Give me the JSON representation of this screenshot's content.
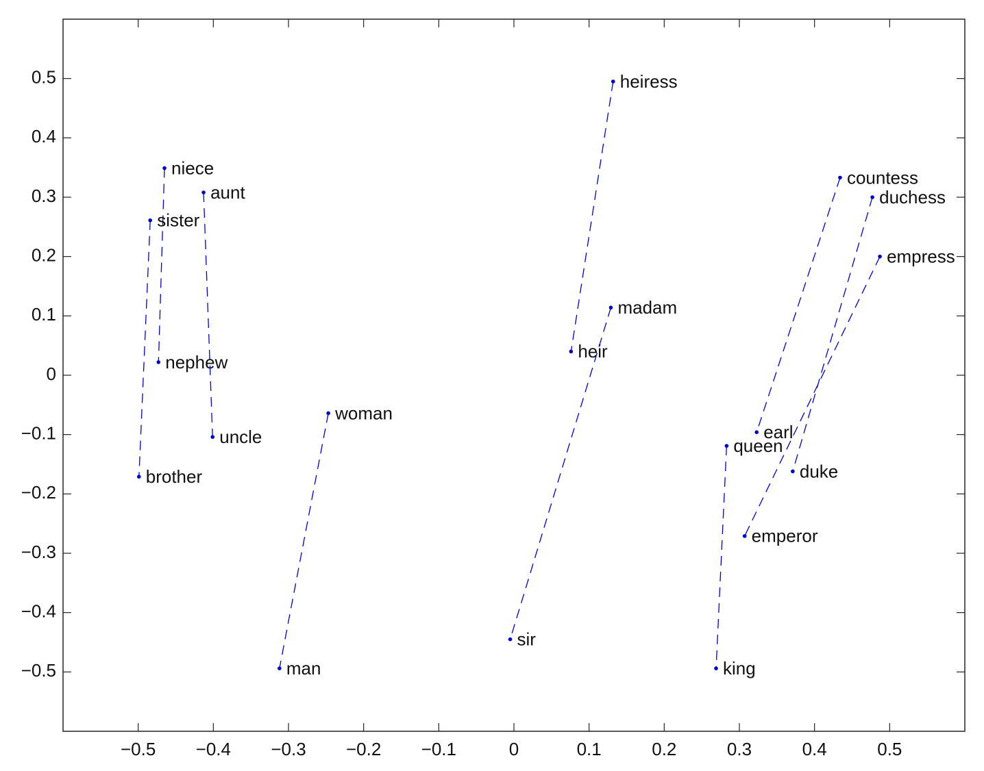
{
  "chart_data": {
    "type": "scatter",
    "color": "#0000cc",
    "line_style": "dashed",
    "xlim": [
      -0.6,
      0.6
    ],
    "ylim": [
      -0.6,
      0.6
    ],
    "xticks": [
      {
        "value": -0.5,
        "label": "−0.5"
      },
      {
        "value": -0.4,
        "label": "−0.4"
      },
      {
        "value": -0.3,
        "label": "−0.3"
      },
      {
        "value": -0.2,
        "label": "−0.2"
      },
      {
        "value": -0.1,
        "label": "−0.1"
      },
      0,
      0.1,
      0.2,
      0.3,
      0.4,
      0.5
    ],
    "yticks": [
      {
        "value": -0.5,
        "label": "−0.5"
      },
      {
        "value": -0.4,
        "label": "−0.4"
      },
      {
        "value": -0.3,
        "label": "−0.3"
      },
      {
        "value": -0.2,
        "label": "−0.2"
      },
      {
        "value": -0.1,
        "label": "−0.1"
      },
      0,
      0.1,
      0.2,
      0.3,
      0.4,
      0.5
    ],
    "series": [
      {
        "labels": [
          "heiress",
          "heir"
        ],
        "x": [
          0.132,
          0.076
        ],
        "y": [
          0.495,
          0.04
        ]
      },
      {
        "labels": [
          "madam",
          "sir"
        ],
        "x": [
          0.129,
          -0.005
        ],
        "y": [
          0.114,
          -0.445
        ]
      },
      {
        "labels": [
          "niece",
          "nephew"
        ],
        "x": [
          -0.465,
          -0.473
        ],
        "y": [
          0.349,
          0.022
        ]
      },
      {
        "labels": [
          "aunt",
          "uncle"
        ],
        "x": [
          -0.413,
          -0.401
        ],
        "y": [
          0.308,
          -0.104
        ]
      },
      {
        "labels": [
          "sister",
          "brother"
        ],
        "x": [
          -0.484,
          -0.499
        ],
        "y": [
          0.261,
          -0.171
        ]
      },
      {
        "labels": [
          "woman",
          "man"
        ],
        "x": [
          -0.247,
          -0.312
        ],
        "y": [
          -0.064,
          -0.494
        ]
      },
      {
        "labels": [
          "countess",
          "earl"
        ],
        "x": [
          0.434,
          0.323
        ],
        "y": [
          0.333,
          -0.096
        ]
      },
      {
        "labels": [
          "duchess",
          "duke"
        ],
        "x": [
          0.477,
          0.371
        ],
        "y": [
          0.3,
          -0.162
        ]
      },
      {
        "labels": [
          "empress",
          "emperor"
        ],
        "x": [
          0.487,
          0.307
        ],
        "y": [
          0.2,
          -0.271
        ]
      },
      {
        "labels": [
          "queen",
          "king"
        ],
        "x": [
          0.283,
          0.269
        ],
        "y": [
          -0.119,
          -0.494
        ]
      }
    ]
  }
}
